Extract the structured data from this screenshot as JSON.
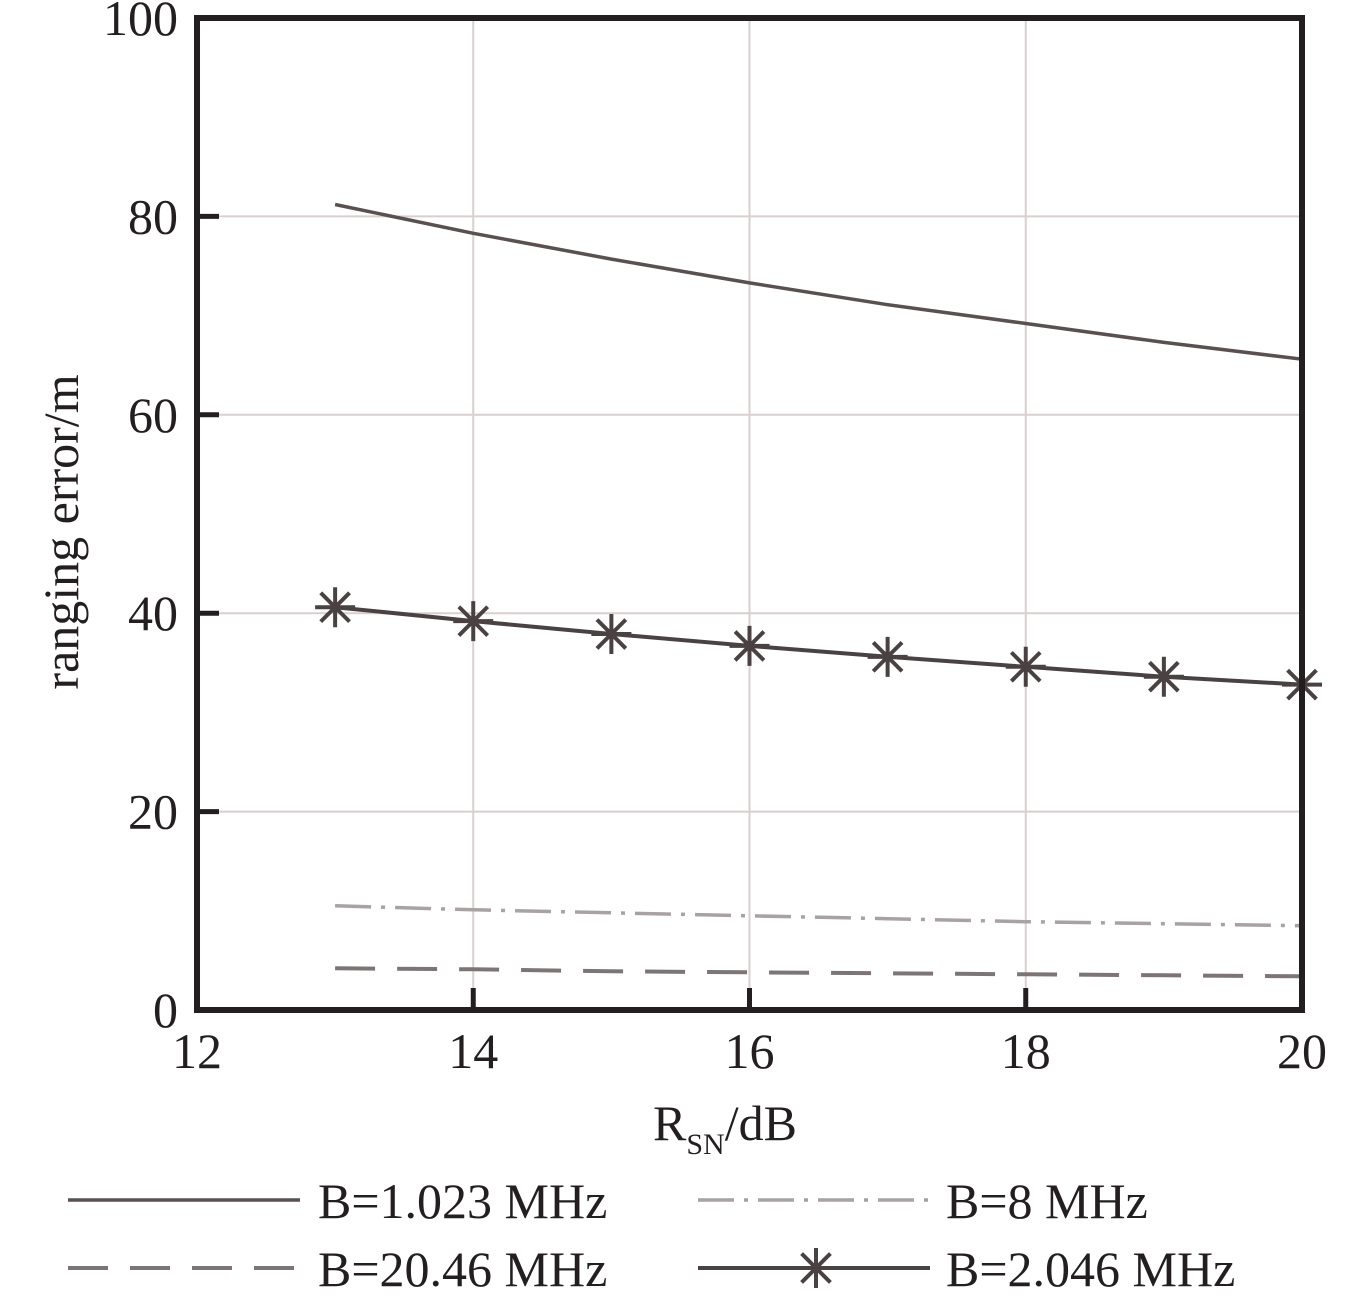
{
  "chart_data": {
    "type": "line",
    "title": "",
    "xlabel": "R",
    "xlabel_sub": "SN",
    "xlabel_suffix": "/dB",
    "ylabel": "ranging error/m",
    "xlim": [
      12,
      20
    ],
    "ylim": [
      0,
      100
    ],
    "xticks": [
      "12",
      "14",
      "16",
      "18",
      "20"
    ],
    "yticks": [
      "0",
      "20",
      "40",
      "60",
      "80",
      "100"
    ],
    "xtick_values": [
      12,
      14,
      16,
      18,
      20
    ],
    "ytick_values": [
      0,
      20,
      40,
      60,
      80,
      100
    ],
    "grid": true,
    "legend_position": "bottom",
    "series": [
      {
        "name": "B=1.023 MHz",
        "style": "solid",
        "color": "#5a5050",
        "x": [
          13,
          14,
          15,
          16,
          17,
          18,
          19,
          20
        ],
        "values": [
          81.2,
          78.3,
          75.7,
          73.3,
          71.1,
          69.2,
          67.3,
          65.6
        ]
      },
      {
        "name": "B=8 MHz",
        "style": "dashdot",
        "color": "#a8a2a2",
        "x": [
          13,
          14,
          15,
          16,
          17,
          18,
          19,
          20
        ],
        "values": [
          10.5,
          10.1,
          9.8,
          9.5,
          9.2,
          8.9,
          8.7,
          8.5
        ]
      },
      {
        "name": "B=20.46 MHz",
        "style": "dashed",
        "color": "#7d7575",
        "x": [
          13,
          14,
          15,
          16,
          17,
          18,
          19,
          20
        ],
        "values": [
          4.2,
          4.1,
          3.9,
          3.8,
          3.7,
          3.6,
          3.5,
          3.4
        ]
      },
      {
        "name": "B=2.046 MHz",
        "style": "solid-star",
        "color": "#4a4242",
        "x": [
          13,
          14,
          15,
          16,
          17,
          18,
          19,
          20
        ],
        "values": [
          40.6,
          39.2,
          37.9,
          36.7,
          35.6,
          34.6,
          33.6,
          32.8
        ]
      }
    ]
  }
}
